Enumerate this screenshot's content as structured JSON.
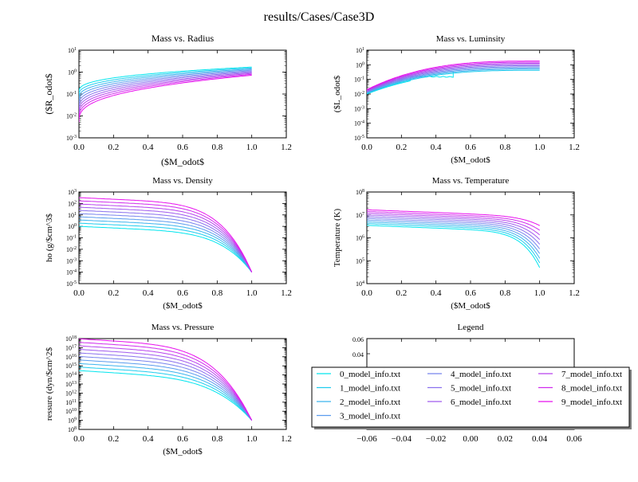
{
  "figure_title": "results/Cases/Case3D",
  "series_names": [
    "0_model_info.txt",
    "1_model_info.txt",
    "2_model_info.txt",
    "3_model_info.txt",
    "4_model_info.txt",
    "5_model_info.txt",
    "6_model_info.txt",
    "7_model_info.txt",
    "8_model_info.txt",
    "9_model_info.txt"
  ],
  "series_colors": [
    "#00e5ee",
    "#1fccee",
    "#3cb4ee",
    "#5a9cee",
    "#7884ee",
    "#8a70ee",
    "#a05aee",
    "#b842ee",
    "#d02aee",
    "#e810ee"
  ],
  "chart_data": [
    {
      "type": "line",
      "title": "Mass vs. Radius",
      "xlabel": "($M_odot$",
      "ylabel": "($R_odot$",
      "xlim": [
        0.0,
        1.2
      ],
      "xticks": [
        "0.0",
        "0.2",
        "0.4",
        "0.6",
        "0.8",
        "1.0",
        "1.2"
      ],
      "yscale": "log",
      "ylim_exp": [
        -3,
        1
      ],
      "yticks": [
        "10^-3",
        "10^-2",
        "10^-1",
        "10^0",
        "10^1"
      ],
      "series_summary": [
        {
          "name": "0_model_info.txt",
          "x": [
            0.0,
            1.0
          ],
          "y_start": 0.12,
          "y_end": 1.7
        },
        {
          "name": "9_model_info.txt",
          "x": [
            0.0,
            1.0
          ],
          "y_start": 0.015,
          "y_end": 0.7
        }
      ]
    },
    {
      "type": "line",
      "title": "Mass vs. Luminsity",
      "xlabel": "($M_odot$",
      "ylabel": "($L_odot$",
      "xlim": [
        0.0,
        1.2
      ],
      "xticks": [
        "0.0",
        "0.2",
        "0.4",
        "0.6",
        "0.8",
        "1.0",
        "1.2"
      ],
      "yscale": "log",
      "ylim_exp": [
        -5,
        1
      ],
      "yticks": [
        "10^-5",
        "10^-4",
        "10^-3",
        "10^-2",
        "10^-1",
        "10^0",
        "10^1"
      ],
      "series_summary": [
        {
          "name": "0_model_info.txt",
          "x": [
            0.0,
            0.5
          ],
          "y_start": 0.01,
          "y_end": 0.15
        },
        {
          "name": "9_model_info.txt",
          "x": [
            0.0,
            1.0
          ],
          "y_start": 0.02,
          "y_end": 1.9
        }
      ]
    },
    {
      "type": "line",
      "title": "Mass vs. Density",
      "xlabel": "($M_odot$",
      "ylabel": "ho (g/$cm^3$",
      "xlim": [
        0.0,
        1.2
      ],
      "xticks": [
        "0.0",
        "0.2",
        "0.4",
        "0.6",
        "0.8",
        "1.0",
        "1.2"
      ],
      "yscale": "log",
      "ylim_exp": [
        -5,
        3
      ],
      "yticks": [
        "10^-5",
        "10^-4",
        "10^-3",
        "10^-2",
        "10^-1",
        "10^0",
        "10^1",
        "10^2",
        "10^3"
      ],
      "series_summary": [
        {
          "name": "0_model_info.txt",
          "x": [
            0.0,
            1.0
          ],
          "y_start": 1.0,
          "y_end": 0.0001
        },
        {
          "name": "9_model_info.txt",
          "x": [
            0.0,
            1.0
          ],
          "y_start": 300,
          "y_end": 0.0001
        }
      ]
    },
    {
      "type": "line",
      "title": "Mass vs. Temperature",
      "xlabel": "($M_odot$",
      "ylabel": "Temperature (K)",
      "xlim": [
        0.0,
        1.2
      ],
      "xticks": [
        "0.0",
        "0.2",
        "0.4",
        "0.6",
        "0.8",
        "1.0",
        "1.2"
      ],
      "yscale": "log",
      "ylim_exp": [
        4,
        8
      ],
      "yticks": [
        "10^4",
        "10^5",
        "10^6",
        "10^7",
        "10^8"
      ],
      "series_summary": [
        {
          "name": "0_model_info.txt",
          "x": [
            0.0,
            1.0
          ],
          "y_start": 3500000.0,
          "y_end": 50000.0
        },
        {
          "name": "9_model_info.txt",
          "x": [
            0.0,
            1.0
          ],
          "y_start": 17000000.0,
          "y_end": 2000000.0
        }
      ]
    },
    {
      "type": "line",
      "title": "Mass vs. Pressure",
      "xlabel": "($M_odot$",
      "ylabel": "ressure (dyn/$cm^2$",
      "xlim": [
        0.0,
        1.2
      ],
      "xticks": [
        "0.0",
        "0.2",
        "0.4",
        "0.6",
        "0.8",
        "1.0",
        "1.2"
      ],
      "yscale": "log",
      "ylim_exp": [
        8,
        18
      ],
      "yticks": [
        "10^8",
        "10^9",
        "10^10",
        "10^11",
        "10^12",
        "10^13",
        "10^14",
        "10^15",
        "10^16",
        "10^17",
        "10^18"
      ],
      "series_summary": [
        {
          "name": "0_model_info.txt",
          "x": [
            0.0,
            1.0
          ],
          "y_start": 300000000000000.0,
          "y_end": 1000000000.0
        },
        {
          "name": "9_model_info.txt",
          "x": [
            0.0,
            1.0
          ],
          "y_start": 1e+18,
          "y_end": 1000000000.0
        }
      ]
    },
    {
      "type": "legend",
      "title": "Legend",
      "xlim": [
        -0.06,
        0.06
      ],
      "ylim": [
        -0.06,
        0.06
      ],
      "xticks": [
        "−0.06",
        "−0.04",
        "−0.02",
        "0.00",
        "0.02",
        "0.04",
        "0.06"
      ],
      "yticks": [
        "0.06",
        "0.04",
        "−0.06"
      ],
      "legend_columns": [
        [
          "0_model_info.txt",
          "1_model_info.txt",
          "2_model_info.txt",
          "3_model_info.txt"
        ],
        [
          "4_model_info.txt",
          "5_model_info.txt",
          "6_model_info.txt"
        ],
        [
          "7_model_info.txt",
          "8_model_info.txt",
          "9_model_info.txt"
        ]
      ]
    }
  ]
}
